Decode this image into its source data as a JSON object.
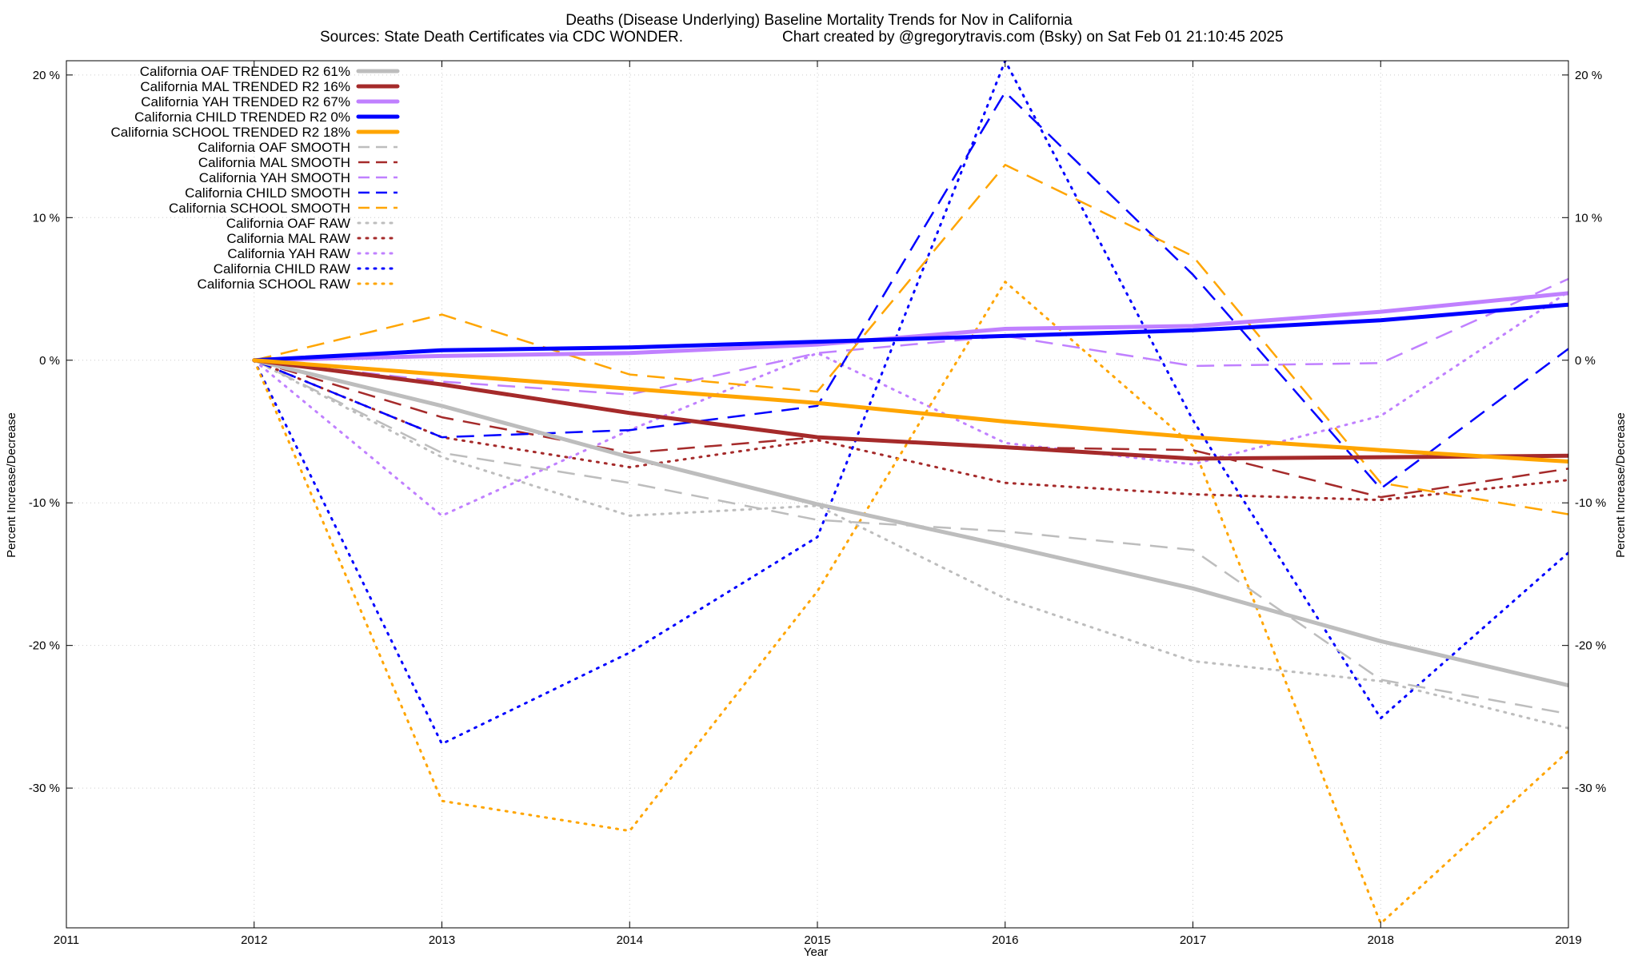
{
  "chart_data": {
    "type": "line",
    "title": "Deaths (Disease Underlying)  Baseline Mortality Trends for Nov in California",
    "subtitle_left": "Sources: State Death Certificates via CDC WONDER.",
    "subtitle_right": "Chart created by @gregorytravis.com (Bsky) on Sat Feb 01 21:10:45 2025",
    "xlabel": "Year",
    "ylabel_left": "Percent Increase/Decrease",
    "ylabel_right": "Percent Increase/Decrease",
    "xlim": [
      2011,
      2019
    ],
    "ylim": [
      -39.8,
      21
    ],
    "x_ticks": [
      2011,
      2012,
      2013,
      2014,
      2015,
      2016,
      2017,
      2018,
      2019
    ],
    "x_tick_labels": [
      "2011",
      "2012",
      "2013",
      "2014",
      "2015",
      "2016",
      "2017",
      "2018",
      "2019"
    ],
    "y_ticks": [
      20,
      10,
      0,
      -10,
      -20,
      -30
    ],
    "y_tick_labels": [
      "20 %",
      "10 %",
      "0 %",
      "-10 %",
      "-20 %",
      "-30 %"
    ],
    "grid": true,
    "legend_position": "top-left",
    "x": [
      2012,
      2013,
      2014,
      2015,
      2016,
      2017,
      2018,
      2019
    ],
    "series": [
      {
        "name": "California OAF TRENDED R2  61%",
        "style": "solid",
        "color": "#bdbdbd",
        "values": [
          0,
          -3.2,
          -6.8,
          -10.1,
          -13.0,
          -16.0,
          -19.7,
          -22.8
        ]
      },
      {
        "name": "California MAL TRENDED R2  16%",
        "style": "solid",
        "color": "#a52a2a",
        "values": [
          0,
          -1.7,
          -3.7,
          -5.4,
          -6.1,
          -6.9,
          -6.8,
          -6.7
        ]
      },
      {
        "name": "California YAH TRENDED R2  67%",
        "style": "solid",
        "color": "#c080ff",
        "values": [
          0,
          0.3,
          0.5,
          1.1,
          2.2,
          2.4,
          3.4,
          4.7
        ]
      },
      {
        "name": "California CHILD TRENDED R2  0%",
        "style": "solid",
        "color": "#0000ff",
        "values": [
          0,
          0.7,
          0.9,
          1.3,
          1.7,
          2.1,
          2.8,
          3.9
        ]
      },
      {
        "name": "California SCHOOL TRENDED R2  18%",
        "style": "solid",
        "color": "#ffa500",
        "values": [
          0,
          -1.0,
          -2.0,
          -3.0,
          -4.3,
          -5.4,
          -6.3,
          -7.1
        ]
      },
      {
        "name": "California OAF SMOOTH",
        "style": "dashed",
        "color": "#bdbdbd",
        "values": [
          0,
          -6.5,
          -8.6,
          -11.2,
          -12.0,
          -13.3,
          -22.4,
          -24.8
        ]
      },
      {
        "name": "California MAL SMOOTH",
        "style": "dashed",
        "color": "#a52a2a",
        "values": [
          0,
          -4.0,
          -6.5,
          -5.4,
          -6.1,
          -6.3,
          -9.6,
          -7.6
        ]
      },
      {
        "name": "California YAH SMOOTH",
        "style": "dashed",
        "color": "#c080ff",
        "values": [
          0,
          -1.5,
          -2.4,
          0.5,
          1.7,
          -0.4,
          -0.2,
          5.7
        ]
      },
      {
        "name": "California CHILD SMOOTH",
        "style": "dashed",
        "color": "#0000ff",
        "values": [
          0,
          -5.4,
          -4.9,
          -3.2,
          18.8,
          6.0,
          -9.0,
          0.8
        ]
      },
      {
        "name": "California SCHOOL SMOOTH",
        "style": "dashed",
        "color": "#ffa500",
        "values": [
          0,
          3.2,
          -1.0,
          -2.2,
          13.7,
          7.3,
          -8.6,
          -10.8
        ]
      },
      {
        "name": "California OAF RAW",
        "style": "dotted",
        "color": "#bdbdbd",
        "values": [
          0,
          -6.8,
          -10.9,
          -10.2,
          -16.7,
          -21.1,
          -22.5,
          -25.8
        ]
      },
      {
        "name": "California MAL RAW",
        "style": "dotted",
        "color": "#a52a2a",
        "values": [
          0,
          -5.4,
          -7.5,
          -5.6,
          -8.6,
          -9.4,
          -9.8,
          -8.4
        ]
      },
      {
        "name": "California YAH RAW",
        "style": "dotted",
        "color": "#c080ff",
        "values": [
          0,
          -10.9,
          -4.9,
          0.5,
          -5.8,
          -7.3,
          -3.9,
          4.8
        ]
      },
      {
        "name": "California CHILD RAW",
        "style": "dotted",
        "color": "#0000ff",
        "values": [
          0,
          -26.9,
          -20.5,
          -12.4,
          21.0,
          -4.2,
          -25.1,
          -13.5
        ]
      },
      {
        "name": "California SCHOOL RAW",
        "style": "dotted",
        "color": "#ffa500",
        "values": [
          0,
          -30.9,
          -33.0,
          -16.2,
          5.5,
          -6.0,
          -39.5,
          -27.4
        ]
      }
    ]
  }
}
